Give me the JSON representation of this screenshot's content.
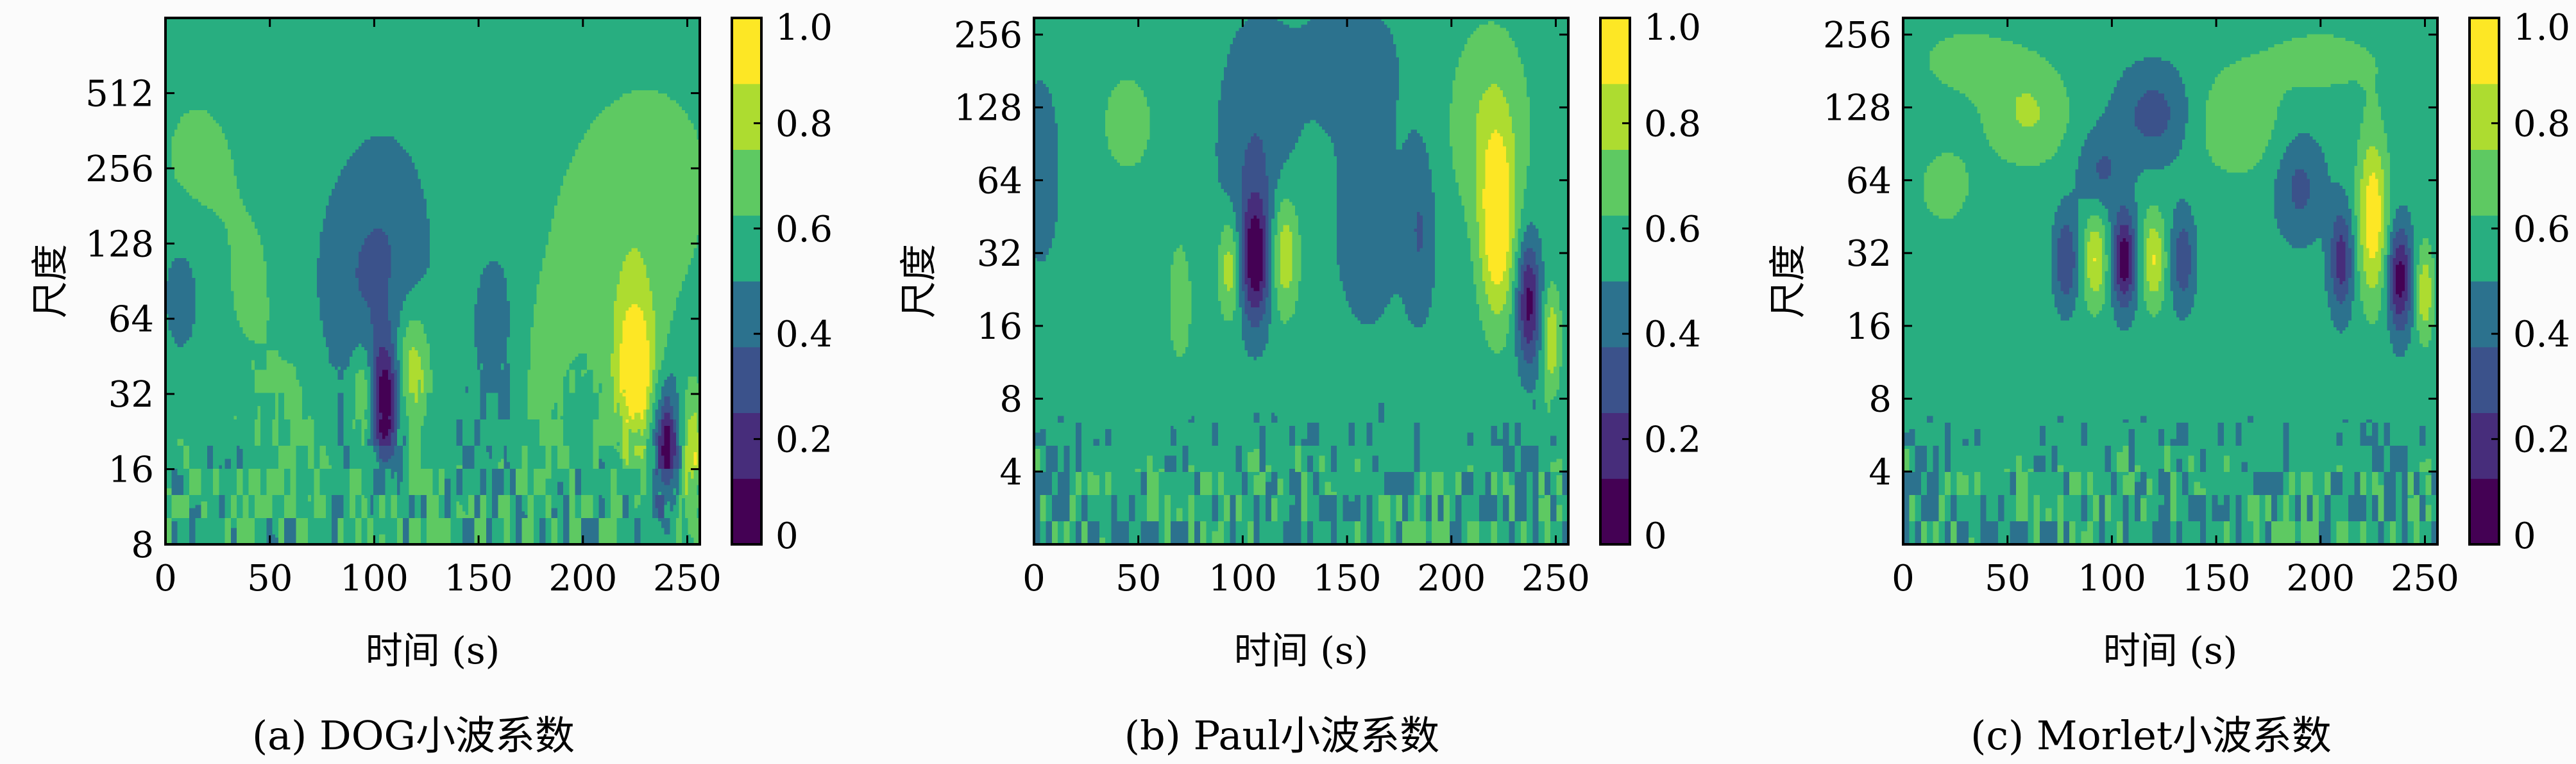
{
  "colors": {
    "viridis": [
      "#440154",
      "#472d7b",
      "#3b528b",
      "#2c728e",
      "#21918c",
      "#28ae80",
      "#5ec962",
      "#addc30",
      "#fde725"
    ],
    "background": "#fbfbfb"
  },
  "chart_data": [
    {
      "type": "heatmap",
      "caption": "(a) DOG小波系数",
      "xlabel": "时间 (s)",
      "ylabel": "尺度",
      "xlim": [
        0,
        256
      ],
      "ylim": [
        8,
        1024
      ],
      "yscale": "log2",
      "x_ticks": [
        0,
        50,
        100,
        150,
        200,
        250
      ],
      "y_ticks": [
        8,
        16,
        32,
        64,
        128,
        256,
        512
      ],
      "colorbar": {
        "ticks": [
          "0",
          "0.2",
          "0.4",
          "0.6",
          "0.8",
          "1.0"
        ],
        "range": [
          0,
          1
        ],
        "levels": 8
      },
      "background_level": 0.56,
      "features": [
        {
          "x": 105,
          "scale": 30,
          "value": 0.03,
          "wx": 5,
          "wy": 0.55
        },
        {
          "x": 105,
          "scale": 110,
          "value": 0.38,
          "wx": 15,
          "wy": 1.1
        },
        {
          "x": 95,
          "scale": 32,
          "value": 0.82,
          "wx": 4,
          "wy": 0.45
        },
        {
          "x": 118,
          "scale": 40,
          "value": 0.86,
          "wx": 6,
          "wy": 0.6
        },
        {
          "x": 225,
          "scale": 40,
          "value": 0.98,
          "wx": 7,
          "wy": 0.75
        },
        {
          "x": 215,
          "scale": 120,
          "value": 0.68,
          "wx": 26,
          "wy": 1.3
        },
        {
          "x": 240,
          "scale": 20,
          "value": 0.08,
          "wx": 4,
          "wy": 0.55
        },
        {
          "x": 252,
          "scale": 18,
          "value": 0.88,
          "wx": 3,
          "wy": 0.5
        },
        {
          "x": 15,
          "scale": 280,
          "value": 0.66,
          "wx": 14,
          "wy": 0.7
        },
        {
          "x": 8,
          "scale": 80,
          "value": 0.46,
          "wx": 8,
          "wy": 0.7
        },
        {
          "x": 60,
          "scale": 22,
          "value": 0.66,
          "wx": 10,
          "wy": 0.9
        },
        {
          "x": 160,
          "scale": 60,
          "value": 0.46,
          "wx": 12,
          "wy": 1.1
        },
        {
          "x": 180,
          "scale": 40,
          "value": 0.67,
          "wx": 9,
          "wy": 0.9
        },
        {
          "x": 85,
          "scale": 80,
          "value": 0.48,
          "wx": 12,
          "wy": 1.0
        },
        {
          "x": 40,
          "scale": 90,
          "value": 0.64,
          "wx": 12,
          "wy": 1.0
        },
        {
          "x": 235,
          "scale": 250,
          "value": 0.66,
          "wx": 18,
          "wy": 0.8
        }
      ]
    },
    {
      "type": "heatmap",
      "caption": "(b) Paul小波系数",
      "xlabel": "时间 (s)",
      "ylabel": "尺度",
      "xlim": [
        0,
        256
      ],
      "ylim": [
        2,
        300
      ],
      "yscale": "log2",
      "x_ticks": [
        0,
        50,
        100,
        150,
        200,
        250
      ],
      "y_ticks": [
        4,
        8,
        16,
        32,
        64,
        128,
        256
      ],
      "colorbar": {
        "ticks": [
          "0",
          "0.2",
          "0.4",
          "0.6",
          "0.8",
          "1.0"
        ],
        "range": [
          0,
          1
        ],
        "levels": 8
      },
      "background_level": 0.55,
      "features": [
        {
          "x": 106,
          "scale": 30,
          "value": 0.05,
          "wx": 5,
          "wy": 0.6
        },
        {
          "x": 106,
          "scale": 80,
          "value": 0.38,
          "wx": 12,
          "wy": 1.2
        },
        {
          "x": 94,
          "scale": 28,
          "value": 0.86,
          "wx": 4,
          "wy": 0.5
        },
        {
          "x": 120,
          "scale": 32,
          "value": 0.88,
          "wx": 5,
          "wy": 0.6
        },
        {
          "x": 222,
          "scale": 40,
          "value": 0.99,
          "wx": 6,
          "wy": 0.9
        },
        {
          "x": 218,
          "scale": 110,
          "value": 0.74,
          "wx": 14,
          "wy": 1.0
        },
        {
          "x": 237,
          "scale": 20,
          "value": 0.08,
          "wx": 4,
          "wy": 0.6
        },
        {
          "x": 248,
          "scale": 14,
          "value": 0.85,
          "wx": 3,
          "wy": 0.5
        },
        {
          "x": 3,
          "scale": 70,
          "value": 0.38,
          "wx": 6,
          "wy": 0.8
        },
        {
          "x": 70,
          "scale": 20,
          "value": 0.72,
          "wx": 4,
          "wy": 0.6
        },
        {
          "x": 160,
          "scale": 40,
          "value": 0.46,
          "wx": 14,
          "wy": 1.2
        },
        {
          "x": 185,
          "scale": 40,
          "value": 0.38,
          "wx": 5,
          "wy": 0.8
        },
        {
          "x": 45,
          "scale": 110,
          "value": 0.65,
          "wx": 14,
          "wy": 0.8
        },
        {
          "x": 150,
          "scale": 200,
          "value": 0.46,
          "wx": 20,
          "wy": 0.7
        }
      ]
    },
    {
      "type": "heatmap",
      "caption": "(c) Morlet小波系数",
      "xlabel": "时间 (s)",
      "ylabel": "尺度",
      "xlim": [
        0,
        256
      ],
      "ylim": [
        2,
        300
      ],
      "yscale": "log2",
      "x_ticks": [
        0,
        50,
        100,
        150,
        200,
        250
      ],
      "y_ticks": [
        4,
        8,
        16,
        32,
        64,
        128,
        256
      ],
      "colorbar": {
        "ticks": [
          "0",
          "0.2",
          "0.4",
          "0.6",
          "0.8",
          "1.0"
        ],
        "range": [
          0,
          1
        ],
        "levels": 8
      },
      "background_level": 0.55,
      "features": [
        {
          "x": 106,
          "scale": 30,
          "value": 0.03,
          "wx": 4,
          "wy": 0.45
        },
        {
          "x": 92,
          "scale": 30,
          "value": 0.88,
          "wx": 4,
          "wy": 0.45
        },
        {
          "x": 120,
          "scale": 30,
          "value": 0.88,
          "wx": 4,
          "wy": 0.45
        },
        {
          "x": 78,
          "scale": 30,
          "value": 0.25,
          "wx": 4,
          "wy": 0.45
        },
        {
          "x": 134,
          "scale": 30,
          "value": 0.28,
          "wx": 4,
          "wy": 0.45
        },
        {
          "x": 225,
          "scale": 45,
          "value": 0.98,
          "wx": 5,
          "wy": 0.8
        },
        {
          "x": 238,
          "scale": 25,
          "value": 0.05,
          "wx": 4,
          "wy": 0.5
        },
        {
          "x": 210,
          "scale": 30,
          "value": 0.18,
          "wx": 4,
          "wy": 0.5
        },
        {
          "x": 250,
          "scale": 22,
          "value": 0.86,
          "wx": 3,
          "wy": 0.45
        },
        {
          "x": 60,
          "scale": 120,
          "value": 0.76,
          "wx": 14,
          "wy": 0.5
        },
        {
          "x": 120,
          "scale": 120,
          "value": 0.32,
          "wx": 12,
          "wy": 0.45
        },
        {
          "x": 160,
          "scale": 110,
          "value": 0.74,
          "wx": 14,
          "wy": 0.5
        },
        {
          "x": 95,
          "scale": 70,
          "value": 0.36,
          "wx": 8,
          "wy": 0.4
        },
        {
          "x": 190,
          "scale": 60,
          "value": 0.34,
          "wx": 8,
          "wy": 0.5
        },
        {
          "x": 200,
          "scale": 200,
          "value": 0.66,
          "wx": 25,
          "wy": 0.4
        },
        {
          "x": 20,
          "scale": 60,
          "value": 0.66,
          "wx": 12,
          "wy": 0.5
        },
        {
          "x": 30,
          "scale": 200,
          "value": 0.66,
          "wx": 20,
          "wy": 0.4
        }
      ]
    }
  ]
}
